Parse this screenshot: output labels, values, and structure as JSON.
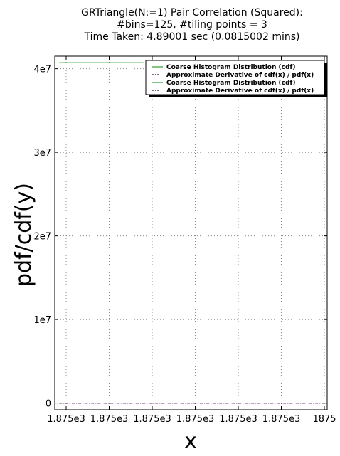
{
  "chart_data": {
    "type": "line",
    "title_lines": [
      "GRTriangle(N:=1) Pair Correlation (Squared):",
      "#bins=125, #tiling points = 3",
      "Time Taken: 4.89001 sec (0.0815002 mins)"
    ],
    "xlabel": "x",
    "ylabel": "pdf/cdf(y)",
    "x_tick_labels": [
      "1.875e3",
      "1.875e3",
      "1.875e3",
      "1.875e3",
      "1.875e3",
      "1.875e3",
      "1875"
    ],
    "y_ticks": [
      0,
      10000000,
      20000000,
      30000000,
      40000000
    ],
    "y_tick_labels": [
      "0",
      "1e7",
      "2e7",
      "3e7",
      "4e7"
    ],
    "xlim": [
      0,
      6.15
    ],
    "ylim": [
      -800000,
      41500000
    ],
    "grid": true,
    "legend_position": "top-right",
    "series": [
      {
        "name": "Coarse Histogram Distribution (cdf)",
        "style": "solid",
        "color": "#2ca02c",
        "x": [
          0.1,
          2.0
        ],
        "y": [
          40700000,
          40700000
        ]
      },
      {
        "name": "Approximate Derivative of cdf(x) / pdf(x)",
        "style": "dashdot",
        "color": "#3d0a4a",
        "x": [
          0.1,
          6.15
        ],
        "y": [
          0,
          0
        ]
      },
      {
        "name": "Coarse Histogram Distribution (cdf)",
        "style": "solid",
        "color": "#2ca02c",
        "x": [
          0.1,
          2.0
        ],
        "y": [
          40700000,
          40700000
        ]
      },
      {
        "name": "Approximate Derivative of cdf(x) / pdf(x)",
        "style": "dashdot",
        "color": "#3d0a4a",
        "x": [
          0.1,
          6.15
        ],
        "y": [
          0,
          0
        ]
      }
    ]
  }
}
